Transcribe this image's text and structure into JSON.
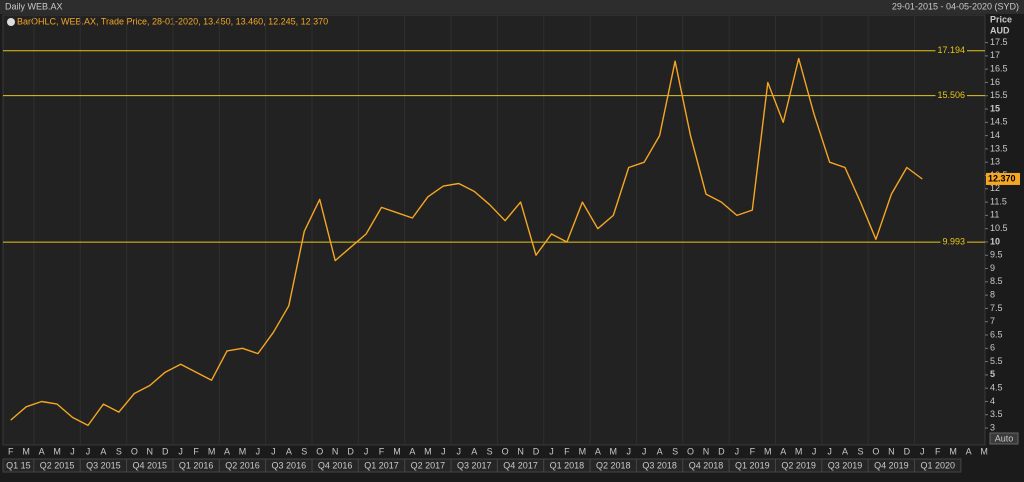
{
  "chart_data": {
    "type": "line",
    "title": "Daily WEB.AX",
    "date_range": "29-01-2015 - 04-05-2020 (SYD)",
    "legend": "BarOHLC, WEB.AX, Trade Price, 28-01-2020, 13.450, 13.460, 12.245, 12.370",
    "y_axis_title": "Price",
    "y_axis_unit": "AUD",
    "scale_button": "Auto",
    "categories": [
      "F",
      "M",
      "A",
      "M",
      "J",
      "J",
      "A",
      "S",
      "O",
      "N",
      "D",
      "J",
      "F",
      "M",
      "A",
      "M",
      "J",
      "J",
      "A",
      "S",
      "O",
      "N",
      "D",
      "J",
      "F",
      "M",
      "A",
      "M",
      "J",
      "J",
      "A",
      "S",
      "O",
      "N",
      "D",
      "J",
      "F",
      "M",
      "A",
      "M",
      "J",
      "J",
      "A",
      "S",
      "O",
      "N",
      "D",
      "J",
      "F",
      "M",
      "A",
      "M",
      "J",
      "J",
      "A",
      "S",
      "O",
      "N",
      "D",
      "J",
      "F",
      "M",
      "A",
      "M"
    ],
    "quarters": [
      "Q1 15",
      "Q2 2015",
      "Q3 2015",
      "Q4 2015",
      "Q1 2016",
      "Q2 2016",
      "Q3 2016",
      "Q4 2016",
      "Q1 2017",
      "Q2 2017",
      "Q3 2017",
      "Q4 2017",
      "Q1 2018",
      "Q2 2018",
      "Q3 2018",
      "Q4 2018",
      "Q1 2019",
      "Q2 2019",
      "Q3 2019",
      "Q4 2019",
      "Q1 2020"
    ],
    "values": [
      3.3,
      3.8,
      4.0,
      3.9,
      3.4,
      3.1,
      3.9,
      3.6,
      4.3,
      4.6,
      5.1,
      5.4,
      5.1,
      4.8,
      5.9,
      6.0,
      5.8,
      6.6,
      7.6,
      10.4,
      11.6,
      9.3,
      9.8,
      10.3,
      11.3,
      11.1,
      10.9,
      11.7,
      12.1,
      12.2,
      11.9,
      11.4,
      10.8,
      11.5,
      9.5,
      10.3,
      10.0,
      11.5,
      10.5,
      11.0,
      12.8,
      13.0,
      14.0,
      16.8,
      14.0,
      11.8,
      11.5,
      11.0,
      11.2,
      16.0,
      14.5,
      16.9,
      14.8,
      13.0,
      12.8,
      11.5,
      10.1,
      11.8,
      12.8,
      12.37,
      null,
      null,
      null,
      null
    ],
    "color": "#f5a623",
    "levels": [
      17.194,
      15.506,
      9.993
    ],
    "level_color": "#e6c619",
    "last_price": {
      "value": 12.37,
      "label": "12.370"
    },
    "ylim": [
      2.55,
      18.5
    ],
    "yticks": [
      3,
      3.5,
      4,
      4.5,
      5,
      5.5,
      6,
      6.5,
      7,
      7.5,
      8,
      8.5,
      9,
      9.5,
      10,
      10.5,
      11,
      11.5,
      12,
      12.5,
      13,
      13.5,
      14,
      14.5,
      15,
      15.5,
      16,
      16.5,
      17,
      17.5
    ],
    "grid": true
  }
}
